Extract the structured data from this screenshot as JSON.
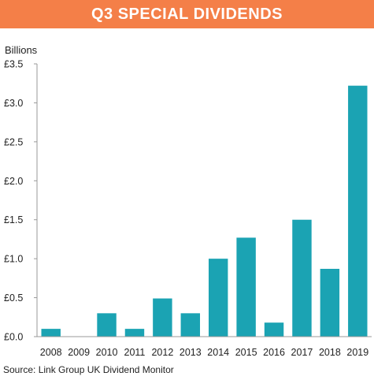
{
  "colors": {
    "banner": "#f47f48",
    "bar": "#1ba3b3",
    "axis": "#999999",
    "text": "#222222"
  },
  "chart_data": {
    "type": "bar",
    "title": "Q3 SPECIAL DIVIDENDS",
    "unit_label": "Billions",
    "xlabel": "",
    "ylabel": "",
    "ylim": [
      0,
      3.5
    ],
    "yticks": [
      0,
      0.5,
      1.0,
      1.5,
      2.0,
      2.5,
      3.0,
      3.5
    ],
    "ytick_labels": [
      "£0.0",
      "£0.5",
      "£1.0",
      "£1.5",
      "£2.0",
      "£2.5",
      "£3.0",
      "£3.5"
    ],
    "categories": [
      "2008",
      "2009",
      "2010",
      "2011",
      "2012",
      "2013",
      "2014",
      "2015",
      "2016",
      "2017",
      "2018",
      "2019"
    ],
    "values": [
      0.1,
      0.0,
      0.3,
      0.1,
      0.49,
      0.3,
      1.0,
      1.27,
      0.18,
      1.5,
      0.87,
      3.22
    ],
    "grid": false,
    "source": "Source: Link Group UK Dividend Monitor"
  }
}
